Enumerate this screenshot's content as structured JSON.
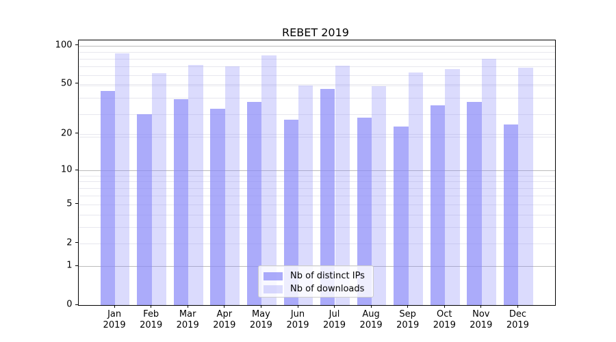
{
  "title": "REBET 2019",
  "chart_data": {
    "type": "bar",
    "title": "REBET 2019",
    "categories": [
      "Jan",
      "Feb",
      "Mar",
      "Apr",
      "May",
      "Jun",
      "Jul",
      "Aug",
      "Sep",
      "Oct",
      "Nov",
      "Dec"
    ],
    "x_year": "2019",
    "series": [
      {
        "name": "Nb of distinct IPs",
        "color": "rgba(135,135,248,0.70)",
        "values": [
          44,
          29,
          38,
          32,
          36,
          26,
          46,
          27,
          23,
          34,
          36,
          24
        ]
      },
      {
        "name": "Nb of downloads",
        "color": "rgba(135,135,248,0.30)",
        "values": [
          87,
          61,
          71,
          69,
          84,
          49,
          70,
          48,
          62,
          66,
          79,
          67
        ]
      }
    ],
    "xlabel": "",
    "ylabel": "",
    "yscale": "log1p",
    "ylim": [
      0,
      110
    ],
    "ytick_labels": [
      0,
      1,
      2,
      5,
      10,
      20,
      50,
      100
    ],
    "major_gridlines": [
      1,
      10,
      100
    ],
    "minor_gridlines": [
      2,
      3,
      4,
      5,
      6,
      7,
      8,
      9,
      19,
      20,
      29,
      39,
      49,
      50,
      59,
      69,
      79,
      89
    ],
    "grid": true,
    "legend_position": "lower center",
    "grid_color_major": "#bbbbbb",
    "grid_color_minor": "#e7e7ee"
  }
}
